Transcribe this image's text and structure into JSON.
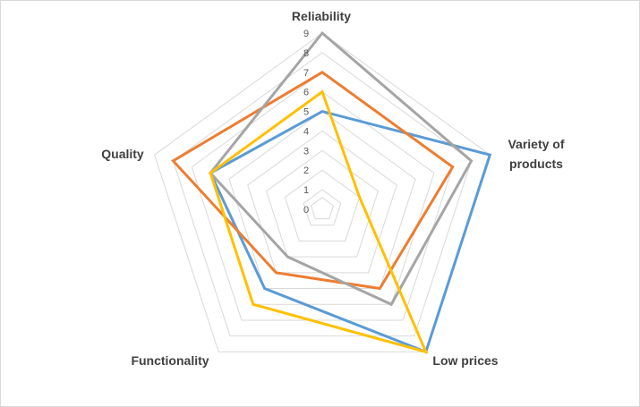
{
  "chart_data": {
    "type": "radar",
    "axes": [
      "Reliability",
      "Variety of products",
      "Low prices",
      "Functionality",
      "Quality"
    ],
    "axis_label_lines": [
      [
        "Reliability"
      ],
      [
        "Variety of",
        "products"
      ],
      [
        "Low prices"
      ],
      [
        "Functionality"
      ],
      [
        "Quality"
      ]
    ],
    "rlim": [
      0,
      9
    ],
    "grid_levels": [
      0,
      1,
      2,
      3,
      4,
      5,
      6,
      7,
      8,
      9
    ],
    "tick_labels": [
      "0",
      "1",
      "2",
      "3",
      "4",
      "5",
      "6",
      "7",
      "8",
      "9"
    ],
    "grid": true,
    "series": [
      {
        "values": [
          5,
          9,
          9,
          5,
          6
        ],
        "color": "#5B9BD5"
      },
      {
        "values": [
          7,
          7,
          5,
          4,
          8
        ],
        "color": "#ED7D31"
      },
      {
        "values": [
          9,
          8,
          6,
          3,
          6
        ],
        "color": "#A5A5A5"
      },
      {
        "values": [
          6,
          2,
          9,
          6,
          6
        ],
        "color": "#FFC000"
      }
    ]
  },
  "colors": {
    "grid": "#d9d9d9",
    "tick": "#595959",
    "label": "#404040"
  }
}
